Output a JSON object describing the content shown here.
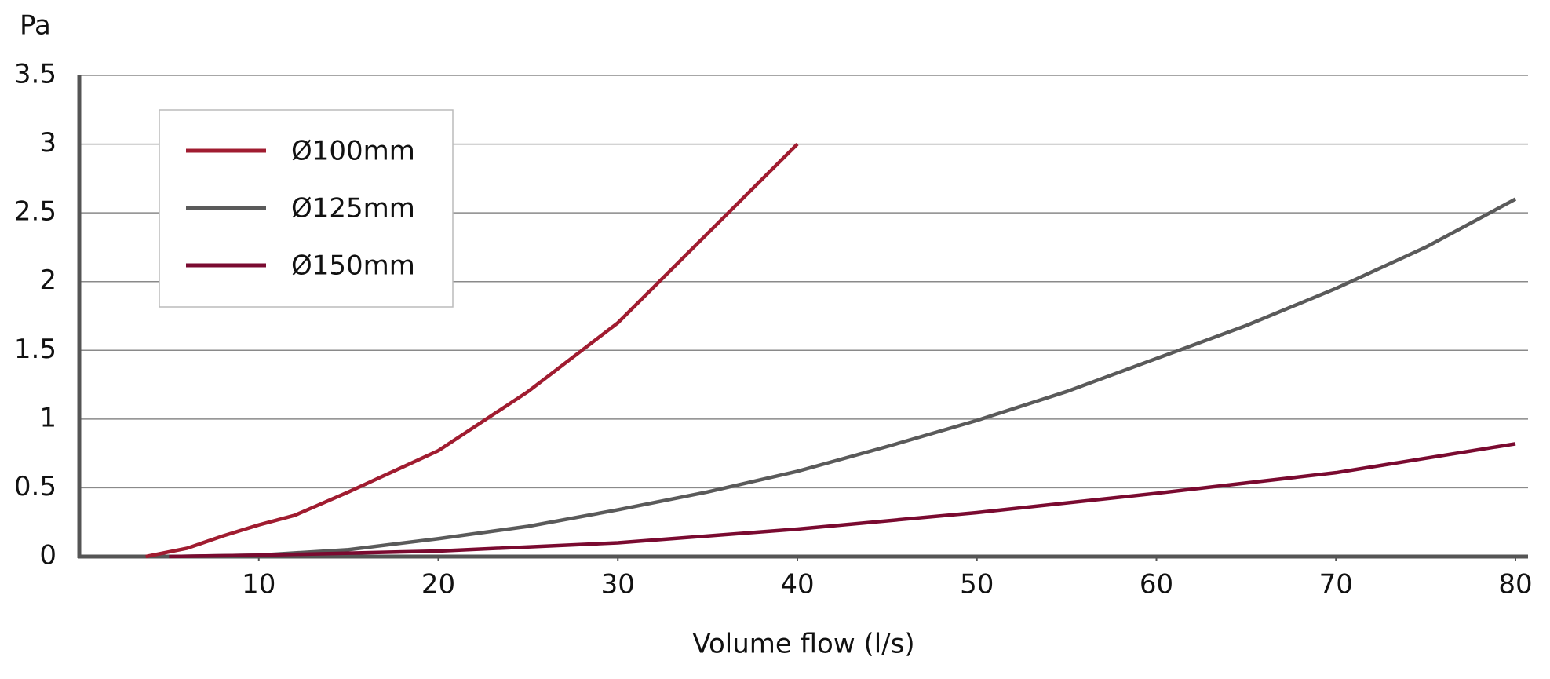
{
  "chart_data": {
    "type": "line",
    "y_label": "Pa",
    "x_label": "Volume flow (l/s)",
    "xlim": [
      0,
      80.7
    ],
    "xticks": [
      10,
      20,
      30,
      40,
      50,
      60,
      70,
      80
    ],
    "ylim": [
      0,
      3.5
    ],
    "yticks": [
      0,
      0.5,
      1,
      1.5,
      2,
      2.5,
      3,
      3.5
    ],
    "grid": true,
    "legend": "upper left",
    "series": [
      {
        "name": "Ø100mm",
        "color": "#a01c30",
        "x": [
          3.7,
          6,
          8,
          10,
          12,
          15,
          20,
          25,
          30,
          35,
          40
        ],
        "values": [
          0,
          0.06,
          0.15,
          0.23,
          0.3,
          0.47,
          0.77,
          1.2,
          1.7,
          2.35,
          3.0
        ]
      },
      {
        "name": "Ø125mm",
        "color": "#5a5a5a",
        "x": [
          5,
          10,
          15,
          20,
          25,
          30,
          35,
          40,
          45,
          50,
          55,
          60,
          65,
          70,
          75,
          80
        ],
        "values": [
          0,
          0.01,
          0.05,
          0.13,
          0.22,
          0.34,
          0.47,
          0.62,
          0.8,
          0.99,
          1.2,
          1.44,
          1.68,
          1.95,
          2.25,
          2.6
        ]
      },
      {
        "name": "Ø150mm",
        "color": "#7a0a30",
        "x": [
          5,
          10,
          20,
          30,
          40,
          50,
          60,
          70,
          80
        ],
        "values": [
          0,
          0.01,
          0.04,
          0.1,
          0.2,
          0.32,
          0.46,
          0.61,
          0.82
        ]
      }
    ]
  }
}
